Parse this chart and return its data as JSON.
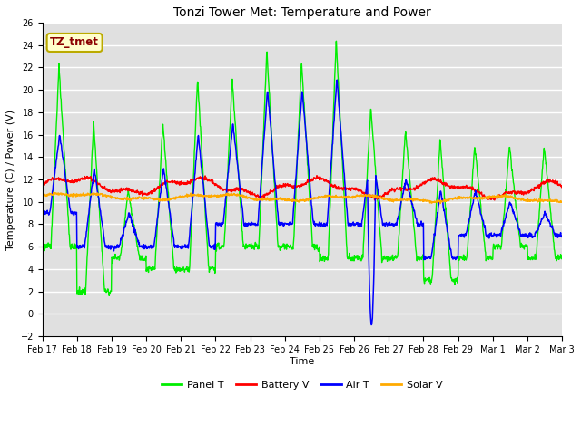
{
  "title": "Tonzi Tower Met: Temperature and Power",
  "xlabel": "Time",
  "ylabel": "Temperature (C) / Power (V)",
  "ylim": [
    -2,
    26
  ],
  "yticks": [
    -2,
    0,
    2,
    4,
    6,
    8,
    10,
    12,
    14,
    16,
    18,
    20,
    22,
    24,
    26
  ],
  "xtick_labels": [
    "Feb 17",
    "Feb 18",
    "Feb 19",
    "Feb 20",
    "Feb 21",
    "Feb 22",
    "Feb 23",
    "Feb 24",
    "Feb 25",
    "Feb 26",
    "Feb 27",
    "Feb 28",
    "Feb 29",
    "Mar 1",
    "Mar 2",
    "Mar 3"
  ],
  "bg_color": "#e0e0e0",
  "panel_color": "#00ee00",
  "battery_color": "#ff0000",
  "air_color": "#0000ff",
  "solar_color": "#ffaa00",
  "legend_labels": [
    "Panel T",
    "Battery V",
    "Air T",
    "Solar V"
  ],
  "annotation_text": "TZ_tmet",
  "annotation_facecolor": "#ffffcc",
  "annotation_edgecolor": "#bbaa00",
  "title_fontsize": 10,
  "axis_fontsize": 8,
  "tick_fontsize": 7,
  "legend_fontsize": 8
}
